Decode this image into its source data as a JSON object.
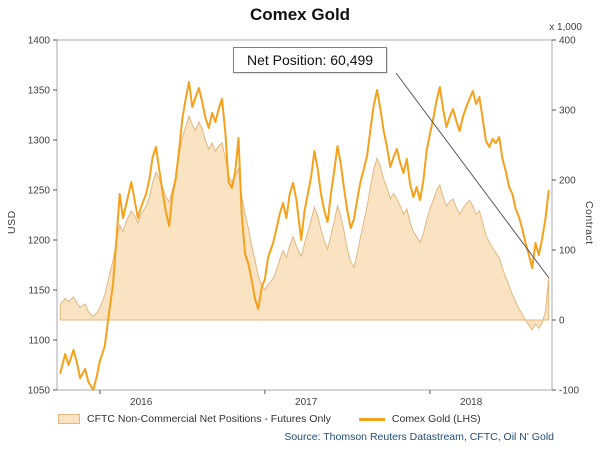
{
  "chart_data": {
    "type": "line",
    "title": "Comex Gold",
    "source": "Source: Thomson Reuters Datastream, CFTC, Oil N' Gold",
    "annotation": {
      "text": "Net Position: 60,499",
      "target": [
        2018.72,
        60.5
      ]
    },
    "x_axis": {
      "range": [
        2015.74,
        2018.74
      ],
      "ticks": [
        2016,
        2017,
        2018
      ],
      "tick_labels": [
        "2016",
        "2017",
        "2018"
      ],
      "label_offset": 0.25
    },
    "left_axis": {
      "label": "USD",
      "range": [
        1050,
        1400
      ],
      "ticks": [
        1050,
        1100,
        1150,
        1200,
        1250,
        1300,
        1350,
        1400
      ]
    },
    "right_axis": {
      "label": "Contract",
      "unit": "x 1,000",
      "range": [
        -100,
        400
      ],
      "ticks": [
        -100,
        0,
        100,
        200,
        300,
        400
      ]
    },
    "legend_position": "bottom",
    "grid": false,
    "series": [
      {
        "name": "CFTC Non-Commercial Net Positions - Futures Only",
        "type": "area",
        "axis": "right",
        "baseline": 0,
        "color": "#FAE3C2",
        "edge": "#E2B87E",
        "points": [
          [
            2015.76,
            22
          ],
          [
            2015.79,
            31
          ],
          [
            2015.81,
            26
          ],
          [
            2015.84,
            33
          ],
          [
            2015.86,
            25
          ],
          [
            2015.88,
            18
          ],
          [
            2015.91,
            23
          ],
          [
            2015.93,
            12
          ],
          [
            2015.96,
            5
          ],
          [
            2015.98,
            10
          ],
          [
            2016.0,
            18
          ],
          [
            2016.03,
            36
          ],
          [
            2016.05,
            56
          ],
          [
            2016.08,
            86
          ],
          [
            2016.1,
            112
          ],
          [
            2016.12,
            136
          ],
          [
            2016.14,
            126
          ],
          [
            2016.16,
            141
          ],
          [
            2016.19,
            156
          ],
          [
            2016.21,
            149
          ],
          [
            2016.23,
            139
          ],
          [
            2016.25,
            151
          ],
          [
            2016.28,
            163
          ],
          [
            2016.3,
            176
          ],
          [
            2016.32,
            196
          ],
          [
            2016.34,
            211
          ],
          [
            2016.36,
            201
          ],
          [
            2016.38,
            189
          ],
          [
            2016.4,
            176
          ],
          [
            2016.42,
            169
          ],
          [
            2016.44,
            186
          ],
          [
            2016.46,
            206
          ],
          [
            2016.48,
            236
          ],
          [
            2016.5,
            261
          ],
          [
            2016.52,
            276
          ],
          [
            2016.54,
            291
          ],
          [
            2016.56,
            279
          ],
          [
            2016.58,
            271
          ],
          [
            2016.6,
            283
          ],
          [
            2016.62,
            273
          ],
          [
            2016.64,
            256
          ],
          [
            2016.66,
            244
          ],
          [
            2016.68,
            253
          ],
          [
            2016.7,
            241
          ],
          [
            2016.72,
            249
          ],
          [
            2016.74,
            253
          ],
          [
            2016.76,
            231
          ],
          [
            2016.78,
            206
          ],
          [
            2016.8,
            197
          ],
          [
            2016.82,
            206
          ],
          [
            2016.84,
            216
          ],
          [
            2016.86,
            176
          ],
          [
            2016.88,
            151
          ],
          [
            2016.9,
            131
          ],
          [
            2016.92,
            106
          ],
          [
            2016.94,
            86
          ],
          [
            2016.96,
            63
          ],
          [
            2016.98,
            49
          ],
          [
            2017.0,
            43
          ],
          [
            2017.02,
            51
          ],
          [
            2017.05,
            59
          ],
          [
            2017.07,
            71
          ],
          [
            2017.09,
            86
          ],
          [
            2017.11,
            99
          ],
          [
            2017.13,
            89
          ],
          [
            2017.15,
            106
          ],
          [
            2017.17,
            119
          ],
          [
            2017.19,
            106
          ],
          [
            2017.22,
            91
          ],
          [
            2017.24,
            109
          ],
          [
            2017.26,
            126
          ],
          [
            2017.28,
            143
          ],
          [
            2017.3,
            161
          ],
          [
            2017.32,
            149
          ],
          [
            2017.34,
            129
          ],
          [
            2017.36,
            113
          ],
          [
            2017.38,
            101
          ],
          [
            2017.4,
            121
          ],
          [
            2017.42,
            141
          ],
          [
            2017.44,
            163
          ],
          [
            2017.46,
            149
          ],
          [
            2017.48,
            126
          ],
          [
            2017.5,
            101
          ],
          [
            2017.52,
            83
          ],
          [
            2017.54,
            75
          ],
          [
            2017.56,
            96
          ],
          [
            2017.58,
            119
          ],
          [
            2017.6,
            141
          ],
          [
            2017.62,
            163
          ],
          [
            2017.64,
            191
          ],
          [
            2017.66,
            216
          ],
          [
            2017.68,
            231
          ],
          [
            2017.7,
            219
          ],
          [
            2017.72,
            201
          ],
          [
            2017.74,
            189
          ],
          [
            2017.76,
            173
          ],
          [
            2017.78,
            181
          ],
          [
            2017.8,
            173
          ],
          [
            2017.82,
            163
          ],
          [
            2017.84,
            151
          ],
          [
            2017.86,
            159
          ],
          [
            2017.88,
            139
          ],
          [
            2017.9,
            126
          ],
          [
            2017.92,
            119
          ],
          [
            2017.94,
            111
          ],
          [
            2017.96,
            123
          ],
          [
            2017.98,
            143
          ],
          [
            2018.0,
            159
          ],
          [
            2018.02,
            171
          ],
          [
            2018.04,
            185
          ],
          [
            2018.06,
            193
          ],
          [
            2018.08,
            176
          ],
          [
            2018.1,
            163
          ],
          [
            2018.12,
            169
          ],
          [
            2018.14,
            173
          ],
          [
            2018.16,
            161
          ],
          [
            2018.18,
            151
          ],
          [
            2018.2,
            159
          ],
          [
            2018.22,
            166
          ],
          [
            2018.24,
            171
          ],
          [
            2018.26,
            163
          ],
          [
            2018.28,
            151
          ],
          [
            2018.3,
            156
          ],
          [
            2018.32,
            139
          ],
          [
            2018.34,
            121
          ],
          [
            2018.36,
            111
          ],
          [
            2018.38,
            103
          ],
          [
            2018.4,
            96
          ],
          [
            2018.42,
            89
          ],
          [
            2018.44,
            73
          ],
          [
            2018.46,
            61
          ],
          [
            2018.48,
            49
          ],
          [
            2018.5,
            36
          ],
          [
            2018.52,
            26
          ],
          [
            2018.54,
            16
          ],
          [
            2018.56,
            8
          ],
          [
            2018.58,
            0
          ],
          [
            2018.6,
            -8
          ],
          [
            2018.62,
            -14
          ],
          [
            2018.64,
            -6
          ],
          [
            2018.66,
            -12
          ],
          [
            2018.68,
            -4
          ],
          [
            2018.7,
            12
          ],
          [
            2018.72,
            60.5
          ]
        ]
      },
      {
        "name": "Comex Gold (LHS)",
        "type": "line",
        "axis": "left",
        "color": "#F5A11C",
        "points": [
          [
            2015.76,
            1067
          ],
          [
            2015.79,
            1086
          ],
          [
            2015.81,
            1075
          ],
          [
            2015.84,
            1090
          ],
          [
            2015.86,
            1078
          ],
          [
            2015.88,
            1062
          ],
          [
            2015.91,
            1071
          ],
          [
            2015.93,
            1058
          ],
          [
            2015.96,
            1050
          ],
          [
            2015.98,
            1063
          ],
          [
            2016.0,
            1079
          ],
          [
            2016.03,
            1094
          ],
          [
            2016.05,
            1120
          ],
          [
            2016.08,
            1157
          ],
          [
            2016.1,
            1200
          ],
          [
            2016.12,
            1246
          ],
          [
            2016.14,
            1222
          ],
          [
            2016.16,
            1236
          ],
          [
            2016.19,
            1258
          ],
          [
            2016.21,
            1240
          ],
          [
            2016.23,
            1222
          ],
          [
            2016.25,
            1233
          ],
          [
            2016.28,
            1246
          ],
          [
            2016.3,
            1261
          ],
          [
            2016.32,
            1283
          ],
          [
            2016.34,
            1293
          ],
          [
            2016.36,
            1270
          ],
          [
            2016.38,
            1248
          ],
          [
            2016.4,
            1228
          ],
          [
            2016.42,
            1214
          ],
          [
            2016.44,
            1246
          ],
          [
            2016.46,
            1262
          ],
          [
            2016.48,
            1290
          ],
          [
            2016.5,
            1322
          ],
          [
            2016.52,
            1341
          ],
          [
            2016.54,
            1358
          ],
          [
            2016.56,
            1333
          ],
          [
            2016.58,
            1343
          ],
          [
            2016.6,
            1352
          ],
          [
            2016.62,
            1338
          ],
          [
            2016.64,
            1322
          ],
          [
            2016.66,
            1312
          ],
          [
            2016.68,
            1327
          ],
          [
            2016.7,
            1318
          ],
          [
            2016.72,
            1331
          ],
          [
            2016.74,
            1341
          ],
          [
            2016.76,
            1308
          ],
          [
            2016.78,
            1258
          ],
          [
            2016.8,
            1252
          ],
          [
            2016.82,
            1268
          ],
          [
            2016.84,
            1302
          ],
          [
            2016.86,
            1224
          ],
          [
            2016.88,
            1186
          ],
          [
            2016.9,
            1176
          ],
          [
            2016.92,
            1160
          ],
          [
            2016.94,
            1141
          ],
          [
            2016.96,
            1131
          ],
          [
            2016.98,
            1152
          ],
          [
            2017.0,
            1161
          ],
          [
            2017.02,
            1183
          ],
          [
            2017.05,
            1197
          ],
          [
            2017.07,
            1211
          ],
          [
            2017.09,
            1226
          ],
          [
            2017.11,
            1237
          ],
          [
            2017.13,
            1222
          ],
          [
            2017.15,
            1246
          ],
          [
            2017.17,
            1257
          ],
          [
            2017.19,
            1241
          ],
          [
            2017.22,
            1200
          ],
          [
            2017.24,
            1229
          ],
          [
            2017.26,
            1246
          ],
          [
            2017.28,
            1263
          ],
          [
            2017.3,
            1289
          ],
          [
            2017.32,
            1271
          ],
          [
            2017.34,
            1246
          ],
          [
            2017.36,
            1229
          ],
          [
            2017.38,
            1218
          ],
          [
            2017.4,
            1246
          ],
          [
            2017.42,
            1269
          ],
          [
            2017.44,
            1294
          ],
          [
            2017.46,
            1276
          ],
          [
            2017.48,
            1251
          ],
          [
            2017.5,
            1229
          ],
          [
            2017.52,
            1212
          ],
          [
            2017.54,
            1221
          ],
          [
            2017.56,
            1241
          ],
          [
            2017.58,
            1259
          ],
          [
            2017.6,
            1271
          ],
          [
            2017.62,
            1285
          ],
          [
            2017.64,
            1311
          ],
          [
            2017.66,
            1335
          ],
          [
            2017.68,
            1350
          ],
          [
            2017.7,
            1331
          ],
          [
            2017.72,
            1309
          ],
          [
            2017.74,
            1293
          ],
          [
            2017.76,
            1273
          ],
          [
            2017.78,
            1283
          ],
          [
            2017.8,
            1291
          ],
          [
            2017.82,
            1277
          ],
          [
            2017.84,
            1267
          ],
          [
            2017.86,
            1281
          ],
          [
            2017.88,
            1256
          ],
          [
            2017.9,
            1243
          ],
          [
            2017.92,
            1253
          ],
          [
            2017.94,
            1240
          ],
          [
            2017.96,
            1259
          ],
          [
            2017.98,
            1289
          ],
          [
            2018.0,
            1306
          ],
          [
            2018.02,
            1321
          ],
          [
            2018.04,
            1339
          ],
          [
            2018.06,
            1353
          ],
          [
            2018.08,
            1331
          ],
          [
            2018.1,
            1313
          ],
          [
            2018.12,
            1323
          ],
          [
            2018.14,
            1331
          ],
          [
            2018.16,
            1319
          ],
          [
            2018.18,
            1309
          ],
          [
            2018.2,
            1323
          ],
          [
            2018.22,
            1333
          ],
          [
            2018.24,
            1341
          ],
          [
            2018.26,
            1349
          ],
          [
            2018.28,
            1336
          ],
          [
            2018.3,
            1343
          ],
          [
            2018.32,
            1321
          ],
          [
            2018.34,
            1299
          ],
          [
            2018.36,
            1293
          ],
          [
            2018.38,
            1301
          ],
          [
            2018.4,
            1297
          ],
          [
            2018.42,
            1303
          ],
          [
            2018.44,
            1281
          ],
          [
            2018.46,
            1269
          ],
          [
            2018.48,
            1253
          ],
          [
            2018.5,
            1246
          ],
          [
            2018.52,
            1231
          ],
          [
            2018.54,
            1223
          ],
          [
            2018.56,
            1211
          ],
          [
            2018.58,
            1197
          ],
          [
            2018.6,
            1185
          ],
          [
            2018.62,
            1172
          ],
          [
            2018.64,
            1197
          ],
          [
            2018.66,
            1185
          ],
          [
            2018.68,
            1201
          ],
          [
            2018.7,
            1221
          ],
          [
            2018.72,
            1249
          ]
        ]
      }
    ]
  }
}
